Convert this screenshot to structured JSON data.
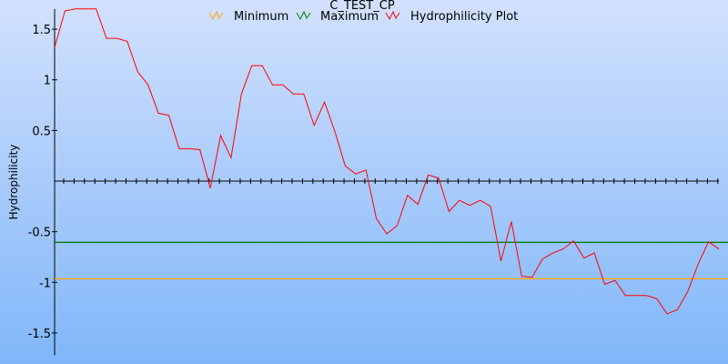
{
  "chart_data": {
    "type": "line",
    "title": "C_TEST_CP",
    "xlabel": "",
    "ylabel": "Hydrophilicity",
    "ylim": [
      -1.72,
      1.7
    ],
    "yticks": [
      1.5,
      1,
      0.5,
      -0.5,
      -1,
      -1.5
    ],
    "ytick_labels": [
      "1.5",
      "1",
      "0.5",
      "-0.5",
      "-1",
      "-1.5"
    ],
    "grid": false,
    "legend_position": "top",
    "legend": [
      "Minimum",
      "Maximum",
      "Hydrophilicity Plot"
    ],
    "series": [
      {
        "name": "Minimum",
        "color": "#ffa500",
        "type": "hline",
        "value": -0.965
      },
      {
        "name": "Maximum",
        "color": "#008000",
        "type": "hline",
        "value": -0.605
      },
      {
        "name": "Hydrophilicity Plot",
        "color": "#ff0000",
        "values": [
          1.32,
          1.68,
          1.7,
          1.7,
          1.7,
          1.41,
          1.41,
          1.38,
          1.08,
          0.95,
          0.67,
          0.65,
          0.32,
          0.32,
          0.31,
          -0.07,
          0.45,
          0.23,
          0.86,
          1.14,
          1.14,
          0.95,
          0.95,
          0.86,
          0.86,
          0.55,
          0.78,
          0.49,
          0.15,
          0.07,
          0.11,
          -0.37,
          -0.52,
          -0.44,
          -0.14,
          -0.23,
          0.06,
          0.03,
          -0.3,
          -0.19,
          -0.24,
          -0.19,
          -0.25,
          -0.79,
          -0.4,
          -0.94,
          -0.95,
          -0.77,
          -0.71,
          -0.67,
          -0.59,
          -0.76,
          -0.71,
          -1.02,
          -0.98,
          -1.13,
          -1.13,
          -1.13,
          -1.16,
          -1.31,
          -1.27,
          -1.09,
          -0.82,
          -0.6,
          -0.67
        ]
      }
    ]
  }
}
